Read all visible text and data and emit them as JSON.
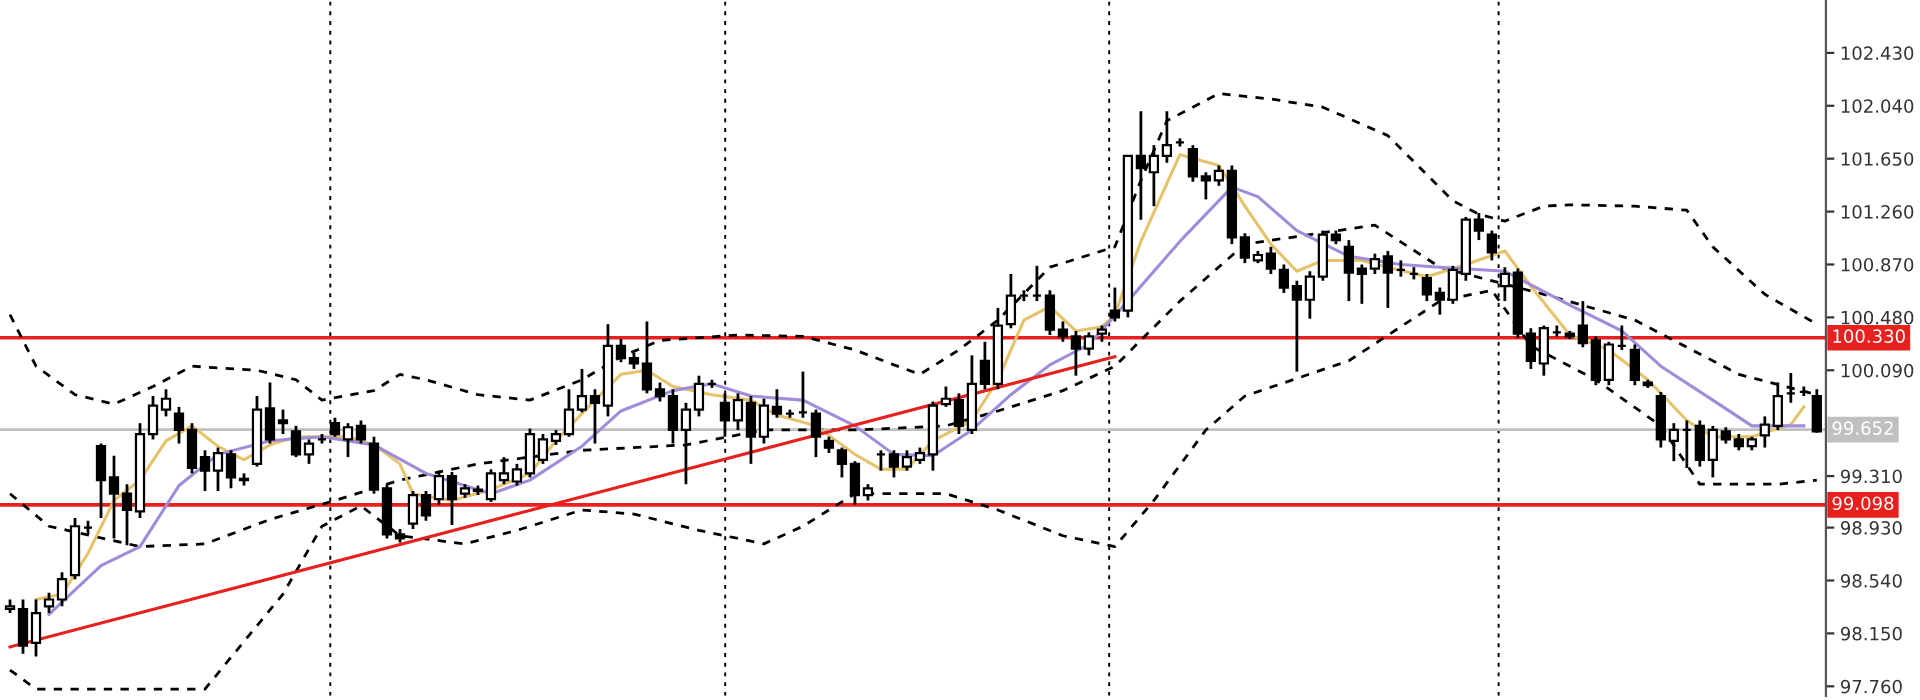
{
  "chart_data": {
    "type": "candlestick",
    "categories": [
      null,
      null,
      null,
      null,
      null,
      null,
      null,
      null,
      null,
      null,
      null,
      null,
      null,
      null,
      null,
      null,
      null,
      null,
      null,
      null,
      null,
      null,
      null,
      null,
      null,
      null,
      null,
      null,
      null,
      null,
      null,
      null,
      null,
      null,
      null,
      null,
      null,
      null,
      null,
      null,
      null,
      null,
      null,
      null,
      null,
      null,
      null,
      null,
      null,
      null,
      null,
      null,
      null,
      null,
      null,
      null,
      null,
      null,
      null,
      null,
      null,
      null,
      null,
      null,
      null,
      null,
      null,
      null,
      null,
      null,
      null,
      null,
      null,
      null,
      null,
      null,
      null,
      null,
      null,
      null,
      null,
      null,
      null,
      null,
      null,
      null,
      null,
      null,
      null,
      null,
      null,
      null,
      null,
      null,
      null,
      null,
      null,
      null,
      null,
      null,
      null,
      null,
      null,
      null,
      null,
      null,
      null,
      null,
      null,
      null,
      null,
      null,
      null,
      null,
      null,
      null,
      null,
      null,
      null,
      null,
      null,
      null,
      null,
      null,
      null,
      null,
      null,
      null,
      null,
      null,
      null,
      null,
      null,
      null,
      null,
      null,
      null,
      null,
      null,
      null
    ],
    "ohlc": [
      [
        98.33,
        98.4,
        98.3,
        98.35
      ],
      [
        98.33,
        98.4,
        98.0,
        98.06
      ],
      [
        98.08,
        98.4,
        97.98,
        98.3
      ],
      [
        98.35,
        98.45,
        98.3,
        98.4
      ],
      [
        98.4,
        98.6,
        98.35,
        98.55
      ],
      [
        98.58,
        99.0,
        98.55,
        98.94
      ],
      [
        98.93,
        98.98,
        98.88,
        98.93
      ],
      [
        99.53,
        99.55,
        99.0,
        99.28
      ],
      [
        99.3,
        99.46,
        98.85,
        99.18
      ],
      [
        99.18,
        99.25,
        98.8,
        99.06
      ],
      [
        99.05,
        99.7,
        99.0,
        99.62
      ],
      [
        99.62,
        99.9,
        99.58,
        99.83
      ],
      [
        99.8,
        99.95,
        99.75,
        99.88
      ],
      [
        99.77,
        99.82,
        99.55,
        99.65
      ],
      [
        99.65,
        99.7,
        99.33,
        99.37
      ],
      [
        99.45,
        99.5,
        99.2,
        99.35
      ],
      [
        99.35,
        99.52,
        99.2,
        99.48
      ],
      [
        99.47,
        99.5,
        99.22,
        99.3
      ],
      [
        99.28,
        99.33,
        99.24,
        99.29
      ],
      [
        99.4,
        99.9,
        99.38,
        99.8
      ],
      [
        99.81,
        100.0,
        99.55,
        99.58
      ],
      [
        99.72,
        99.8,
        99.62,
        99.7
      ],
      [
        99.64,
        99.68,
        99.45,
        99.47
      ],
      [
        99.47,
        99.58,
        99.4,
        99.55
      ],
      [
        99.58,
        99.62,
        99.55,
        99.58
      ],
      [
        99.7,
        99.74,
        99.6,
        99.62
      ],
      [
        99.58,
        99.7,
        99.45,
        99.67
      ],
      [
        99.68,
        99.72,
        99.55,
        99.58
      ],
      [
        99.55,
        99.6,
        99.18,
        99.21
      ],
      [
        99.22,
        99.25,
        98.85,
        98.88
      ],
      [
        98.88,
        98.92,
        98.82,
        98.85
      ],
      [
        98.96,
        99.2,
        98.92,
        99.17
      ],
      [
        99.17,
        99.2,
        98.98,
        99.02
      ],
      [
        99.14,
        99.35,
        99.1,
        99.31
      ],
      [
        99.31,
        99.34,
        98.95,
        99.14
      ],
      [
        99.18,
        99.25,
        99.15,
        99.22
      ],
      [
        99.2,
        99.24,
        99.17,
        99.21
      ],
      [
        99.14,
        99.36,
        99.12,
        99.33
      ],
      [
        99.28,
        99.45,
        99.25,
        99.33
      ],
      [
        99.27,
        99.4,
        99.24,
        99.36
      ],
      [
        99.33,
        99.66,
        99.3,
        99.62
      ],
      [
        99.43,
        99.62,
        99.4,
        99.58
      ],
      [
        99.57,
        99.65,
        99.54,
        99.62
      ],
      [
        99.62,
        99.95,
        99.6,
        99.8
      ],
      [
        99.8,
        100.1,
        99.78,
        99.9
      ],
      [
        99.9,
        99.95,
        99.55,
        99.85
      ],
      [
        99.83,
        100.43,
        99.75,
        100.27
      ],
      [
        100.27,
        100.32,
        100.15,
        100.18
      ],
      [
        100.18,
        100.22,
        100.1,
        100.14
      ],
      [
        100.14,
        100.45,
        99.92,
        99.95
      ],
      [
        99.95,
        100.0,
        99.86,
        99.9
      ],
      [
        99.9,
        99.95,
        99.55,
        99.65
      ],
      [
        99.65,
        99.85,
        99.25,
        99.8
      ],
      [
        99.8,
        100.05,
        99.75,
        99.99
      ],
      [
        99.99,
        100.02,
        99.96,
        99.99
      ],
      [
        99.85,
        99.92,
        99.6,
        99.72
      ],
      [
        99.72,
        99.92,
        99.65,
        99.87
      ],
      [
        99.85,
        99.9,
        99.4,
        99.6
      ],
      [
        99.6,
        99.88,
        99.55,
        99.83
      ],
      [
        99.82,
        99.95,
        99.74,
        99.77
      ],
      [
        99.77,
        99.8,
        99.74,
        99.77
      ],
      [
        99.78,
        100.08,
        99.74,
        99.78
      ],
      [
        99.77,
        99.8,
        99.45,
        99.6
      ],
      [
        99.57,
        99.6,
        99.48,
        99.52
      ],
      [
        99.5,
        99.52,
        99.3,
        99.4
      ],
      [
        99.4,
        99.42,
        99.1,
        99.17
      ],
      [
        99.17,
        99.25,
        99.13,
        99.22
      ],
      [
        99.47,
        99.5,
        99.35,
        99.47
      ],
      [
        99.47,
        99.5,
        99.3,
        99.38
      ],
      [
        99.38,
        99.5,
        99.35,
        99.45
      ],
      [
        99.43,
        99.52,
        99.4,
        99.48
      ],
      [
        99.47,
        99.86,
        99.35,
        99.83
      ],
      [
        99.84,
        99.97,
        99.82,
        99.88
      ],
      [
        99.87,
        99.92,
        99.62,
        99.68
      ],
      [
        99.65,
        100.2,
        99.62,
        99.99
      ],
      [
        100.16,
        100.3,
        99.95,
        99.99
      ],
      [
        99.99,
        100.55,
        99.95,
        100.42
      ],
      [
        100.43,
        100.8,
        100.4,
        100.64
      ],
      [
        100.64,
        100.68,
        100.6,
        100.64
      ],
      [
        100.64,
        100.86,
        100.6,
        100.64
      ],
      [
        100.64,
        100.68,
        100.35,
        100.39
      ],
      [
        100.39,
        100.45,
        100.3,
        100.34
      ],
      [
        100.34,
        100.38,
        100.05,
        100.25
      ],
      [
        100.25,
        100.37,
        100.2,
        100.34
      ],
      [
        100.36,
        100.42,
        100.3,
        100.39
      ],
      [
        100.53,
        100.7,
        100.45,
        100.48
      ],
      [
        100.53,
        101.67,
        100.48,
        101.67
      ],
      [
        101.67,
        102.0,
        101.2,
        101.58
      ],
      [
        101.55,
        101.75,
        101.3,
        101.67
      ],
      [
        101.67,
        102.0,
        101.62,
        101.75
      ],
      [
        101.77,
        101.8,
        101.74,
        101.77
      ],
      [
        101.72,
        101.75,
        101.48,
        101.52
      ],
      [
        101.52,
        101.55,
        101.35,
        101.49
      ],
      [
        101.49,
        101.6,
        101.45,
        101.56
      ],
      [
        101.56,
        101.6,
        101.02,
        101.07
      ],
      [
        101.07,
        101.1,
        100.88,
        100.92
      ],
      [
        100.9,
        100.97,
        100.88,
        100.94
      ],
      [
        100.95,
        101.0,
        100.8,
        100.84
      ],
      [
        100.83,
        100.87,
        100.66,
        100.7
      ],
      [
        100.71,
        100.75,
        100.08,
        100.61
      ],
      [
        100.61,
        100.82,
        100.47,
        100.78
      ],
      [
        100.78,
        101.12,
        100.75,
        101.09
      ],
      [
        101.09,
        101.12,
        101.02,
        101.05
      ],
      [
        101.0,
        101.05,
        100.6,
        100.81
      ],
      [
        100.84,
        100.87,
        100.58,
        100.8
      ],
      [
        100.84,
        100.95,
        100.8,
        100.91
      ],
      [
        100.93,
        100.97,
        100.55,
        100.81
      ],
      [
        100.83,
        100.9,
        100.78,
        100.83
      ],
      [
        100.8,
        100.85,
        100.76,
        100.8
      ],
      [
        100.77,
        100.8,
        100.6,
        100.65
      ],
      [
        100.66,
        100.7,
        100.5,
        100.61
      ],
      [
        100.61,
        100.86,
        100.58,
        100.83
      ],
      [
        100.8,
        101.22,
        100.75,
        101.2
      ],
      [
        101.2,
        101.25,
        101.05,
        101.12
      ],
      [
        101.09,
        101.12,
        100.9,
        100.96
      ],
      [
        100.71,
        100.85,
        100.6,
        100.8
      ],
      [
        100.81,
        100.84,
        100.33,
        100.36
      ],
      [
        100.36,
        100.4,
        100.1,
        100.16
      ],
      [
        100.14,
        100.42,
        100.05,
        100.4
      ],
      [
        100.37,
        100.42,
        100.34,
        100.37
      ],
      [
        100.36,
        100.38,
        100.32,
        100.34
      ],
      [
        100.42,
        100.6,
        100.26,
        100.29
      ],
      [
        100.31,
        100.34,
        99.98,
        100.02
      ],
      [
        100.02,
        100.3,
        99.98,
        100.28
      ],
      [
        100.27,
        100.42,
        100.24,
        100.27
      ],
      [
        100.24,
        100.28,
        99.98,
        100.02
      ],
      [
        100.0,
        100.02,
        99.96,
        99.98
      ],
      [
        99.9,
        99.93,
        99.52,
        99.58
      ],
      [
        99.57,
        99.7,
        99.42,
        99.65
      ],
      [
        99.65,
        99.72,
        99.37,
        99.65
      ],
      [
        99.68,
        99.72,
        99.38,
        99.43
      ],
      [
        99.43,
        99.68,
        99.3,
        99.65
      ],
      [
        99.64,
        99.67,
        99.55,
        99.58
      ],
      [
        99.58,
        99.62,
        99.5,
        99.53
      ],
      [
        99.53,
        99.6,
        99.5,
        99.58
      ],
      [
        99.61,
        99.75,
        99.52,
        99.69
      ],
      [
        99.68,
        100.0,
        99.65,
        99.9
      ],
      [
        99.92,
        100.07,
        99.85,
        99.92
      ],
      [
        99.93,
        99.97,
        99.9,
        99.93
      ],
      [
        99.9,
        99.95,
        99.63,
        99.64
      ]
    ],
    "series": [
      {
        "type": "line",
        "color": "#000000",
        "line_style": "dashed",
        "values": [
          100.5,
          null,
          100.12,
          null,
          null,
          99.91,
          null,
          null,
          99.84,
          null,
          null,
          99.97,
          null,
          null,
          100.12,
          null,
          null,
          null,
          null,
          100.09,
          null,
          null,
          100.02,
          null,
          99.87,
          null,
          null,
          null,
          99.94,
          null,
          100.06,
          null,
          100.02,
          null,
          null,
          null,
          99.91,
          null,
          null,
          null,
          99.87,
          null,
          null,
          null,
          100.02,
          null,
          null,
          100.19,
          null,
          null,
          100.31,
          null,
          null,
          null,
          null,
          null,
          100.35,
          null,
          null,
          null,
          null,
          100.34,
          null,
          null,
          null,
          100.24,
          null,
          null,
          100.13,
          null,
          100.06,
          null,
          null,
          100.24,
          null,
          null,
          100.46,
          null,
          null,
          null,
          100.85,
          null,
          null,
          null,
          null,
          101.0,
          null,
          101.49,
          null,
          101.93,
          null,
          null,
          null,
          102.13,
          null,
          null,
          null,
          102.09,
          null,
          null,
          null,
          102.03,
          null,
          null,
          null,
          null,
          101.82,
          null,
          null,
          null,
          null,
          101.34,
          null,
          101.24,
          null,
          101.19,
          null,
          null,
          101.3,
          null,
          101.31,
          null,
          null,
          null,
          null,
          101.3,
          null,
          null,
          null,
          101.27,
          null,
          101.0,
          null,
          null,
          null,
          100.65,
          null,
          null,
          null,
          100.43
        ]
      },
      {
        "type": "line",
        "color": "#000000",
        "line_style": "dashed",
        "values": [
          99.18,
          null,
          null,
          98.94,
          null,
          null,
          null,
          null,
          null,
          null,
          98.79,
          null,
          null,
          null,
          null,
          98.81,
          null,
          null,
          null,
          null,
          98.99,
          null,
          null,
          null,
          null,
          99.13,
          null,
          null,
          null,
          null,
          99.28,
          null,
          null,
          null,
          null,
          null,
          99.4,
          null,
          null,
          null,
          null,
          null,
          null,
          null,
          99.5,
          null,
          null,
          null,
          null,
          null,
          null,
          null,
          99.54,
          null,
          null,
          null,
          null,
          null,
          99.65,
          null,
          null,
          null,
          null,
          null,
          null,
          99.65,
          null,
          null,
          null,
          null,
          null,
          null,
          99.68,
          null,
          null,
          null,
          99.79,
          null,
          null,
          null,
          null,
          99.94,
          null,
          null,
          null,
          100.12,
          null,
          null,
          null,
          null,
          100.6,
          null,
          null,
          null,
          null,
          101.02,
          null,
          null,
          null,
          null,
          null,
          null,
          null,
          null,
          null,
          101.16,
          null,
          null,
          null,
          null,
          100.85,
          null,
          null,
          null,
          null,
          null,
          null,
          null,
          100.65,
          null,
          null,
          null,
          null,
          null,
          null,
          100.46,
          null,
          null,
          null,
          null,
          null,
          null,
          null,
          100.06,
          null,
          null,
          null,
          null,
          null,
          99.91
        ]
      },
      {
        "type": "line",
        "color": "#000000",
        "line_style": "dashed",
        "values": [
          97.88,
          null,
          97.74,
          null,
          null,
          null,
          null,
          null,
          null,
          null,
          null,
          null,
          null,
          null,
          null,
          97.74,
          null,
          null,
          null,
          null,
          null,
          98.44,
          null,
          null,
          98.94,
          null,
          null,
          99.09,
          null,
          null,
          98.87,
          null,
          null,
          null,
          null,
          98.81,
          null,
          null,
          null,
          98.91,
          null,
          null,
          null,
          null,
          99.06,
          null,
          null,
          null,
          99.03,
          null,
          null,
          null,
          null,
          98.91,
          null,
          null,
          null,
          null,
          98.81,
          null,
          null,
          98.94,
          null,
          null,
          null,
          99.18,
          null,
          null,
          null,
          null,
          null,
          null,
          99.18,
          null,
          null,
          null,
          99.06,
          null,
          null,
          null,
          null,
          98.87,
          null,
          null,
          null,
          98.79,
          null,
          null,
          99.13,
          null,
          null,
          null,
          99.65,
          null,
          null,
          99.9,
          null,
          null,
          null,
          null,
          null,
          null,
          null,
          100.16,
          null,
          null,
          null,
          null,
          null,
          null,
          100.6,
          null,
          null,
          null,
          100.68,
          null,
          null,
          100.27,
          null,
          null,
          null,
          null,
          100.02,
          null,
          null,
          null,
          null,
          99.68,
          null,
          null,
          99.25,
          null,
          null,
          null,
          null,
          null,
          99.25,
          null,
          null,
          99.28
        ]
      },
      {
        "type": "line",
        "color": "#e6c36a",
        "line_style": "solid",
        "values": [
          null,
          null,
          98.4,
          null,
          98.44,
          null,
          98.74,
          null,
          99.13,
          null,
          99.28,
          null,
          99.57,
          null,
          99.68,
          null,
          99.53,
          null,
          99.43,
          null,
          99.54,
          null,
          99.6,
          null,
          null,
          null,
          99.6,
          null,
          99.54,
          null,
          99.4,
          99.18,
          null,
          null,
          99.13,
          null,
          null,
          99.21,
          null,
          null,
          99.33,
          null,
          99.57,
          null,
          null,
          99.87,
          null,
          100.06,
          null,
          100.09,
          null,
          99.97,
          null,
          null,
          99.91,
          null,
          null,
          99.87,
          null,
          99.76,
          null,
          null,
          99.68,
          null,
          null,
          99.47,
          null,
          99.36,
          null,
          99.36,
          null,
          99.57,
          null,
          null,
          99.72,
          null,
          100.02,
          null,
          100.46,
          null,
          100.56,
          null,
          100.38,
          null,
          100.41,
          100.5,
          null,
          101.04,
          null,
          null,
          101.68,
          null,
          null,
          101.6,
          null,
          101.3,
          null,
          101.02,
          null,
          100.82,
          null,
          100.9,
          null,
          null,
          100.9,
          null,
          100.85,
          null,
          null,
          100.78,
          null,
          null,
          100.87,
          null,
          null,
          100.97,
          null,
          100.71,
          null,
          null,
          100.35,
          null,
          null,
          100.24,
          null,
          null,
          100.02,
          null,
          null,
          99.72,
          null,
          99.6,
          null,
          null,
          99.6,
          null,
          null,
          99.69,
          99.82,
          null
        ]
      },
      {
        "type": "line",
        "color": "#a08cd8",
        "line_style": "solid",
        "values": [
          null,
          null,
          null,
          98.29,
          null,
          null,
          null,
          98.65,
          null,
          null,
          98.79,
          null,
          null,
          99.24,
          null,
          null,
          99.47,
          null,
          null,
          null,
          99.57,
          null,
          null,
          null,
          99.6,
          null,
          null,
          null,
          99.54,
          null,
          null,
          null,
          99.33,
          null,
          null,
          null,
          null,
          99.18,
          null,
          null,
          99.28,
          null,
          null,
          null,
          99.53,
          null,
          null,
          99.79,
          null,
          null,
          null,
          99.94,
          null,
          null,
          99.99,
          null,
          null,
          99.9,
          null,
          null,
          null,
          99.87,
          null,
          null,
          null,
          99.68,
          null,
          null,
          99.47,
          null,
          null,
          99.46,
          null,
          null,
          99.65,
          null,
          null,
          99.91,
          null,
          null,
          100.13,
          null,
          null,
          100.28,
          null,
          null,
          100.6,
          null,
          null,
          null,
          101.04,
          null,
          null,
          null,
          101.44,
          null,
          101.37,
          null,
          null,
          101.12,
          null,
          null,
          null,
          100.93,
          null,
          null,
          null,
          100.87,
          null,
          null,
          100.85,
          null,
          null,
          null,
          null,
          100.82,
          null,
          null,
          null,
          null,
          100.57,
          null,
          null,
          null,
          100.38,
          null,
          null,
          100.12,
          null,
          null,
          null,
          99.87,
          null,
          null,
          99.68,
          null,
          null,
          null,
          99.68,
          null
        ]
      },
      {
        "type": "line",
        "color": "#e8201e",
        "line_style": "solid",
        "values": [
          98.05,
          null,
          null,
          null,
          null,
          null,
          null,
          null,
          null,
          null,
          null,
          null,
          null,
          null,
          null,
          null,
          null,
          null,
          null,
          null,
          null,
          null,
          null,
          null,
          null,
          null,
          null,
          null,
          null,
          null,
          null,
          null,
          null,
          null,
          null,
          null,
          null,
          null,
          null,
          null,
          null,
          null,
          null,
          null,
          null,
          null,
          null,
          null,
          null,
          null,
          null,
          null,
          null,
          null,
          null,
          null,
          null,
          null,
          null,
          null,
          null,
          null,
          null,
          null,
          null,
          null,
          null,
          null,
          null,
          null,
          null,
          null,
          null,
          null,
          null,
          null,
          null,
          null,
          null,
          null,
          null,
          null,
          null,
          null,
          null,
          100.19,
          null,
          null,
          null,
          null,
          null,
          null,
          null,
          null,
          null,
          null,
          null,
          null,
          null,
          null,
          null,
          null,
          null,
          null,
          null,
          null,
          null,
          null,
          null,
          null,
          null,
          null,
          null,
          null,
          null,
          null,
          null,
          null,
          null,
          null,
          null,
          null,
          null,
          null,
          null,
          null,
          null,
          null,
          null,
          null,
          null,
          null,
          null,
          null,
          null,
          null,
          null,
          null,
          null,
          null
        ]
      }
    ],
    "ylim": [
      97.69,
      102.82
    ],
    "yticks": [
      {
        "value": 97.76,
        "label": "97.760"
      },
      {
        "value": 98.15,
        "label": "98.150"
      },
      {
        "value": 98.54,
        "label": "98.540"
      },
      {
        "value": 98.93,
        "label": "98.930"
      },
      {
        "value": 99.31,
        "label": "99.310"
      },
      {
        "value": 100.09,
        "label": "100.090"
      },
      {
        "value": 100.48,
        "label": "100.480"
      },
      {
        "value": 100.87,
        "label": "100.870"
      },
      {
        "value": 101.26,
        "label": "101.260"
      },
      {
        "value": 101.65,
        "label": "101.650"
      },
      {
        "value": 102.04,
        "label": "102.040"
      },
      {
        "value": 102.43,
        "label": "102.430"
      }
    ],
    "ref_lines": [
      {
        "axis": "y",
        "value": 100.33,
        "label": "100.330",
        "color": "#e8201e",
        "line_style": "solid"
      },
      {
        "axis": "y",
        "value": 99.098,
        "label": "99.098",
        "color": "#e8201e",
        "line_style": "solid"
      },
      {
        "axis": "y",
        "value": 99.652,
        "label": "99.652",
        "color": "#c0c0c0",
        "line_style": "solid"
      }
    ],
    "tick_labels": "y",
    "grid": false,
    "legend": false
  }
}
